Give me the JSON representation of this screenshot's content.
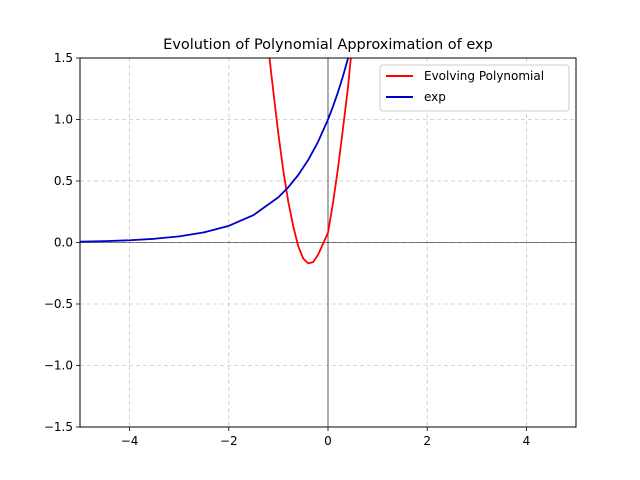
{
  "chart_data": {
    "type": "line",
    "title": "Evolution of Polynomial Approximation of exp",
    "xlabel": "",
    "ylabel": "",
    "xlim": [
      -5,
      5
    ],
    "ylim": [
      -1.5,
      1.5
    ],
    "xticks": [
      -4,
      -2,
      0,
      2,
      4
    ],
    "xtick_labels": [
      "−4",
      "−2",
      "0",
      "2",
      "4"
    ],
    "yticks": [
      -1.5,
      -1.0,
      -0.5,
      0.0,
      0.5,
      1.0,
      1.5
    ],
    "ytick_labels": [
      "−1.5",
      "−1.0",
      "−0.5",
      "0.0",
      "0.5",
      "1.0",
      "1.5"
    ],
    "grid": true,
    "legend_position": "top-right",
    "series": [
      {
        "name": "Evolving Polynomial",
        "color": "#ff0000",
        "x": [
          -1.18,
          -1.1,
          -1.0,
          -0.9,
          -0.8,
          -0.7,
          -0.6,
          -0.5,
          -0.4,
          -0.3,
          -0.2,
          -0.1,
          0.0,
          0.1,
          0.2,
          0.3,
          0.4,
          0.46
        ],
        "y": [
          1.5,
          1.22,
          0.88,
          0.58,
          0.33,
          0.13,
          -0.03,
          -0.13,
          -0.17,
          -0.16,
          -0.1,
          -0.01,
          0.08,
          0.32,
          0.6,
          0.92,
          1.25,
          1.5
        ]
      },
      {
        "name": "exp",
        "color": "#0000cc",
        "x": [
          -5.0,
          -4.5,
          -4.0,
          -3.5,
          -3.0,
          -2.5,
          -2.0,
          -1.5,
          -1.0,
          -0.8,
          -0.6,
          -0.4,
          -0.2,
          0.0,
          0.1,
          0.2,
          0.3,
          0.4,
          0.405
        ],
        "y": [
          0.0067,
          0.0111,
          0.0183,
          0.0302,
          0.0498,
          0.0821,
          0.1353,
          0.2231,
          0.3679,
          0.4493,
          0.5488,
          0.6703,
          0.8187,
          1.0,
          1.1052,
          1.2214,
          1.3499,
          1.4918,
          1.5
        ]
      }
    ]
  }
}
